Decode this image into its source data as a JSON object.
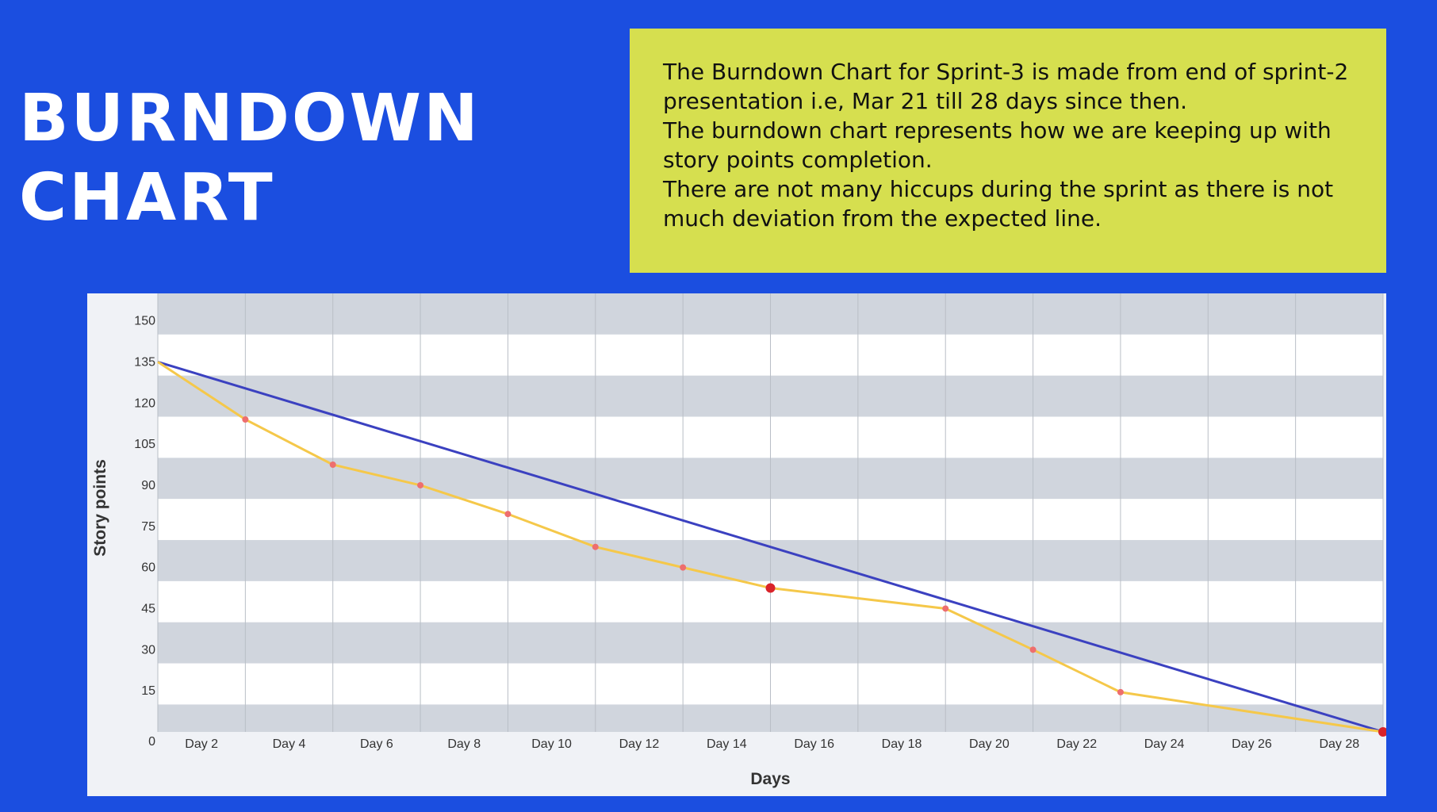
{
  "slide": {
    "title_line1": "BURNDOWN",
    "title_line2": "CHART",
    "notes": [
      "The Burndown Chart for Sprint-3 is made from end of sprint-2 presentation i.e, Mar 21 till 28 days since then.",
      "The burndown chart represents how we are keeping up with story points completion.",
      "There are not many hiccups during the sprint as there is not much deviation from the expected line."
    ]
  },
  "colors": {
    "background": "#1b4ee0",
    "notes_box": "#d6df4f",
    "expected_line": "#3b41c0",
    "actual_line": "#f5c84a",
    "actual_points": "#ee6e6e",
    "highlight_point": "#d9232a",
    "band_gray": "#d0d5dd"
  },
  "chart_data": {
    "type": "line",
    "xlabel": "Days",
    "ylabel": "Story points",
    "x_tick_labels": [
      "Day 2",
      "Day 4",
      "Day 6",
      "Day 8",
      "Day 10",
      "Day 12",
      "Day 14",
      "Day 16",
      "Day 18",
      "Day 20",
      "Day 22",
      "Day 24",
      "Day 26",
      "Day 28"
    ],
    "y_tick_labels": [
      "0",
      "15",
      "30",
      "45",
      "60",
      "75",
      "90",
      "105",
      "120",
      "135",
      "150"
    ],
    "xlim": [
      1,
      29
    ],
    "ylim": [
      0,
      160
    ],
    "grid": true,
    "series": [
      {
        "key": "expected",
        "points": [
          [
            1,
            135
          ],
          [
            29,
            0
          ]
        ]
      },
      {
        "key": "actual",
        "points": [
          [
            1,
            135
          ],
          [
            3,
            114
          ],
          [
            5,
            97.5
          ],
          [
            7,
            90
          ],
          [
            9,
            79.5
          ],
          [
            11,
            67.5
          ],
          [
            13,
            60
          ],
          [
            15,
            52.5
          ],
          [
            19,
            45
          ],
          [
            21,
            30
          ],
          [
            23,
            14.5
          ],
          [
            29,
            0
          ]
        ]
      }
    ],
    "highlighted_points": [
      [
        15,
        52.5
      ],
      [
        29,
        0
      ]
    ]
  }
}
